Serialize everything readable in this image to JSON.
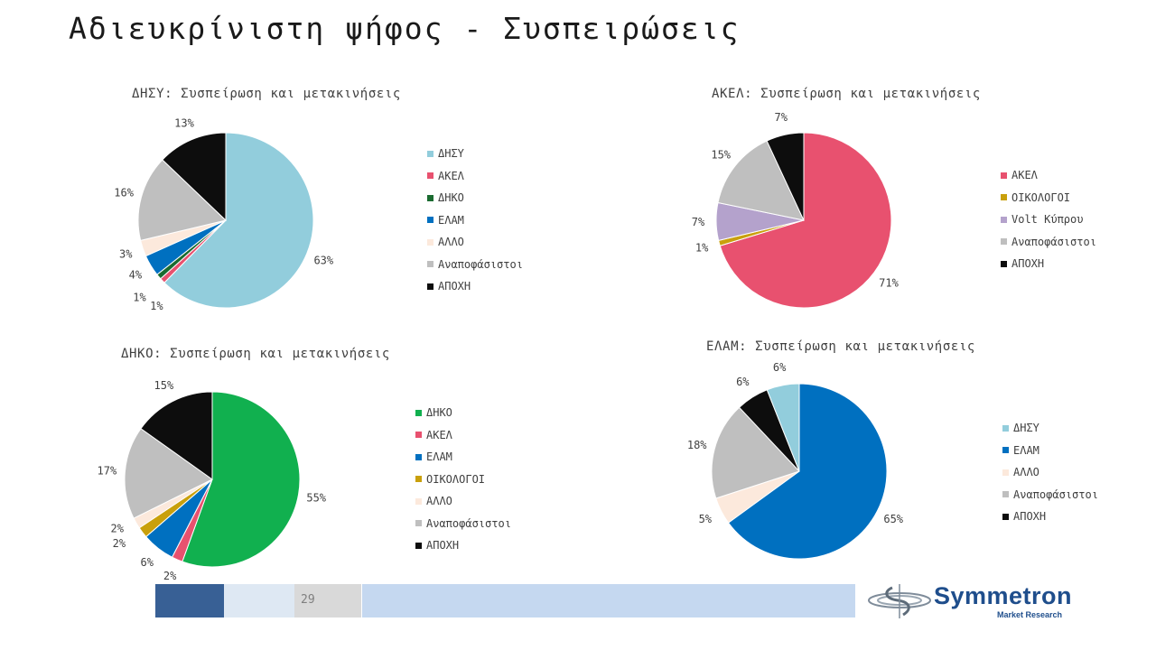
{
  "slide": {
    "title": "Αδιευκρίνιστη ψήφος - Συσπειρώσεις",
    "page_number": "29",
    "footer_colors": [
      "#386095",
      "#dee8f3",
      "#d9d9d9",
      "#c5d8f0"
    ]
  },
  "logo": {
    "name": "Symmetron",
    "subtitle": "Market Research",
    "icon": "swirl-logo-icon"
  },
  "chart_data": [
    {
      "type": "pie",
      "title": "ΔΗΣΥ: Συσπείρωση και μετακινήσεις",
      "legend_position": "right",
      "slices": [
        {
          "label": "ΔΗΣΥ",
          "value": 63,
          "display": "63%",
          "color": "#92cddc"
        },
        {
          "label": "ΑΚΕΛ",
          "value": 1,
          "display": "1%",
          "color": "#e8516f"
        },
        {
          "label": "ΔΗΚΟ",
          "value": 1,
          "display": "1%",
          "color": "#1a6b30"
        },
        {
          "label": "ΕΛΑΜ",
          "value": 4,
          "display": "4%",
          "color": "#0070c0"
        },
        {
          "label": "ΑΛΛΟ",
          "value": 3,
          "display": "3%",
          "color": "#fce9dc"
        },
        {
          "label": "Αναποφάσιστοι",
          "value": 16,
          "display": "16%",
          "color": "#bfbfbf"
        },
        {
          "label": "ΑΠΟΧΗ",
          "value": 13,
          "display": "13%",
          "color": "#0d0d0d"
        }
      ]
    },
    {
      "type": "pie",
      "title": "ΑΚΕΛ: Συσπείρωση και μετακινήσεις",
      "legend_position": "right",
      "slices": [
        {
          "label": "ΑΚΕΛ",
          "value": 71,
          "display": "71%",
          "color": "#e8516f"
        },
        {
          "label": "ΟΙΚΟΛΟΓΟΙ",
          "value": 1,
          "display": "1%",
          "color": "#c9a00c"
        },
        {
          "label": "Volt Κύπρου",
          "value": 7,
          "display": "7%",
          "color": "#b4a2cc"
        },
        {
          "label": "Αναποφάσιστοι",
          "value": 15,
          "display": "15%",
          "color": "#bfbfbf"
        },
        {
          "label": "ΑΠΟΧΗ",
          "value": 7,
          "display": "7%",
          "color": "#0d0d0d"
        }
      ]
    },
    {
      "type": "pie",
      "title": "ΔΗΚΟ: Συσπείρωση και μετακινήσεις",
      "legend_position": "right",
      "slices": [
        {
          "label": "ΔΗΚΟ",
          "value": 55,
          "display": "55%",
          "color": "#11b04f"
        },
        {
          "label": "ΑΚΕΛ",
          "value": 2,
          "display": "2%",
          "color": "#e8516f"
        },
        {
          "label": "ΕΛΑΜ",
          "value": 6,
          "display": "6%",
          "color": "#0070c0"
        },
        {
          "label": "ΟΙΚΟΛΟΓΟΙ",
          "value": 2,
          "display": "2%",
          "color": "#c9a00c"
        },
        {
          "label": "ΑΛΛΟ",
          "value": 2,
          "display": "2%",
          "color": "#fce9dc"
        },
        {
          "label": "Αναποφάσιστοι",
          "value": 17,
          "display": "17%",
          "color": "#bfbfbf"
        },
        {
          "label": "ΑΠΟΧΗ",
          "value": 15,
          "display": "15%",
          "color": "#0d0d0d"
        }
      ]
    },
    {
      "type": "pie",
      "title": "ΕΛΑΜ: Συσπείρωση και μετακινήσεις",
      "legend_position": "right",
      "slices": [
        {
          "label": "ΕΛΑΜ",
          "value": 65,
          "display": "65%",
          "color": "#0070c0"
        },
        {
          "label": "ΑΛΛΟ",
          "value": 5,
          "display": "5%",
          "color": "#fce9dc"
        },
        {
          "label": "Αναποφάσιστοι",
          "value": 18,
          "display": "18%",
          "color": "#bfbfbf"
        },
        {
          "label": "ΑΠΟΧΗ",
          "value": 6,
          "display": "6%",
          "color": "#0d0d0d"
        },
        {
          "label": "ΔΗΣΥ",
          "value": 6,
          "display": "6%",
          "color": "#92cddc"
        }
      ],
      "legend": [
        {
          "label": "ΔΗΣΥ",
          "color": "#92cddc"
        },
        {
          "label": "ΕΛΑΜ",
          "color": "#0070c0"
        },
        {
          "label": "ΑΛΛΟ",
          "color": "#fce9dc"
        },
        {
          "label": "Αναποφάσιστοι",
          "color": "#bfbfbf"
        },
        {
          "label": "ΑΠΟΧΗ",
          "color": "#0d0d0d"
        }
      ]
    }
  ]
}
